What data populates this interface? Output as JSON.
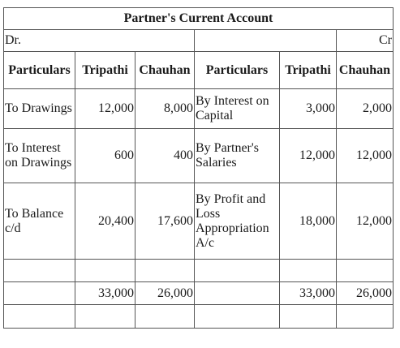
{
  "title": "Partner's Current Account",
  "side_dr": "Dr.",
  "side_cr": "Cr",
  "headers": {
    "particulars_left": "Particulars",
    "tripathi_left": "Tripathi",
    "chauhan_left": "Chauhan",
    "particulars_right": "Particulars",
    "tripathi_right": "Tripathi",
    "chauhan_right": "Chauhan"
  },
  "rows": [
    {
      "left_particular": "To Drawings",
      "left_tripathi": "12,000",
      "left_chauhan": "8,000",
      "right_particular": "By Interest on Capital",
      "right_tripathi": "3,000",
      "right_chauhan": "2,000"
    },
    {
      "left_particular": "To Interest on Drawings",
      "left_tripathi": "600",
      "left_chauhan": "400",
      "right_particular": "By Partner's Salaries",
      "right_tripathi": "12,000",
      "right_chauhan": "12,000"
    },
    {
      "left_particular": "To Balance c/d",
      "left_tripathi": "20,400",
      "left_chauhan": "17,600",
      "right_particular": "By Profit and Loss Appropriation A/c",
      "right_tripathi": "18,000",
      "right_chauhan": "12,000"
    }
  ],
  "totals": {
    "left_tripathi": "33,000",
    "left_chauhan": "26,000",
    "right_tripathi": "33,000",
    "right_chauhan": "26,000"
  }
}
